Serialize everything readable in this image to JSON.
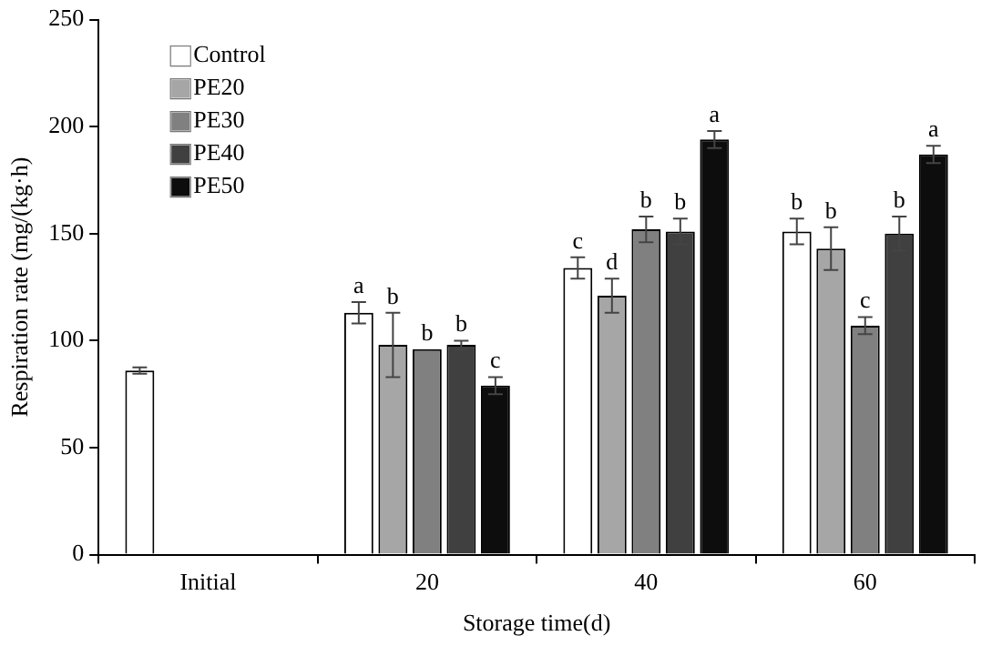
{
  "chart_data": {
    "type": "bar",
    "xlabel": "Storage time(d)",
    "ylabel": "Respiration rate (mg/(kg·h)",
    "categories": [
      "Initial",
      "20",
      "40",
      "60"
    ],
    "series": [
      {
        "name": "Control",
        "color": "#ffffff",
        "values": [
          86,
          113,
          134,
          151
        ],
        "errors": [
          1.5,
          5,
          5,
          6
        ],
        "value_labels": [
          null,
          "a",
          "c",
          "b"
        ]
      },
      {
        "name": "PE20",
        "color": "#a6a6a6",
        "values": [
          null,
          98,
          121,
          143
        ],
        "errors": [
          null,
          15,
          8,
          10
        ],
        "value_labels": [
          null,
          "b",
          "d",
          "b"
        ]
      },
      {
        "name": "PE30",
        "color": "#808080",
        "values": [
          null,
          96,
          152,
          107
        ],
        "errors": [
          null,
          null,
          6,
          4
        ],
        "value_labels": [
          null,
          "b",
          "b",
          "c"
        ]
      },
      {
        "name": "PE40",
        "color": "#404040",
        "values": [
          null,
          98,
          151,
          150
        ],
        "errors": [
          null,
          2,
          6,
          8
        ],
        "value_labels": [
          null,
          "b",
          "b",
          "b"
        ]
      },
      {
        "name": "PE50",
        "color": "#0d0d0d",
        "values": [
          null,
          79,
          194,
          187
        ],
        "errors": [
          null,
          4,
          4,
          4
        ],
        "value_labels": [
          null,
          "c",
          "a",
          "a"
        ]
      }
    ],
    "ylim": [
      0,
      250
    ],
    "yticks": [
      0,
      50,
      100,
      150,
      200,
      250
    ],
    "grid": false,
    "legend": "top left"
  }
}
